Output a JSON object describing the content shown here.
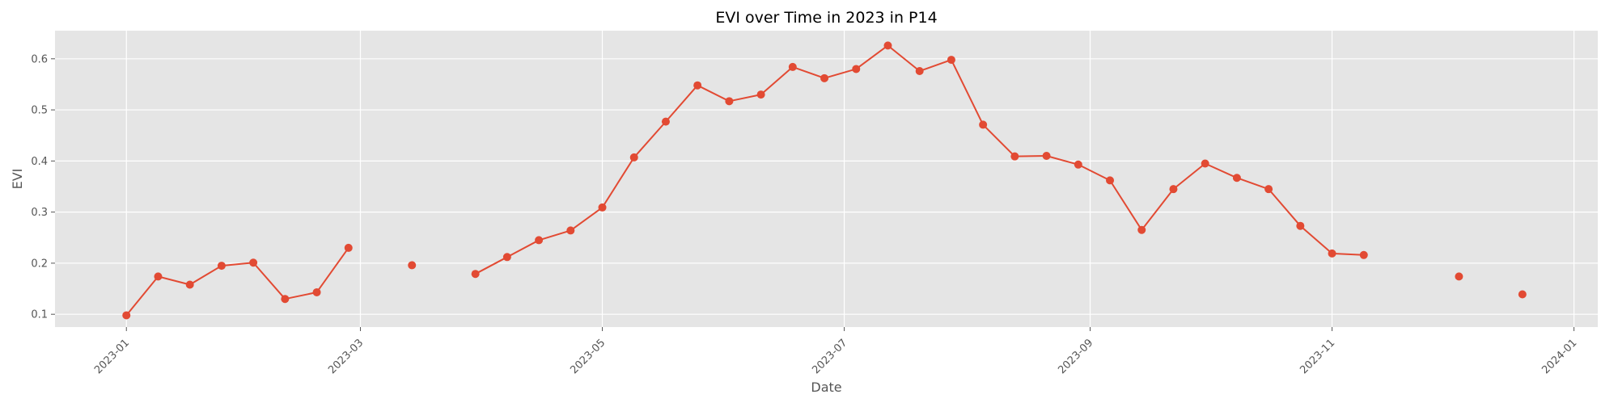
{
  "chart_data": {
    "type": "line",
    "title": "EVI over Time in 2023 in P14",
    "xlabel": "Date",
    "ylabel": "EVI",
    "x_ticks": [
      "2023-01",
      "2023-03",
      "2023-05",
      "2023-07",
      "2023-09",
      "2023-11",
      "2024-01"
    ],
    "y_ticks": [
      "0.1",
      "0.2",
      "0.3",
      "0.4",
      "0.5",
      "0.6"
    ],
    "xlim": [
      "2022-12-14",
      "2024-01-07"
    ],
    "ylim": [
      0.075,
      0.655
    ],
    "grid": true,
    "colors": {
      "series": "#E24A33",
      "plot_bg": "#E5E5E5",
      "grid": "#FFFFFF"
    },
    "series": [
      {
        "points": [
          [
            "2023-01-01",
            0.098
          ],
          [
            "2023-01-09",
            0.174
          ],
          [
            "2023-01-17",
            0.158
          ],
          [
            "2023-01-25",
            0.195
          ],
          [
            "2023-02-02",
            0.201
          ],
          [
            "2023-02-10",
            0.13
          ],
          [
            "2023-02-18",
            0.143
          ],
          [
            "2023-02-26",
            0.23
          ],
          [
            "2023-03-14",
            0.196
          ],
          [
            "2023-03-30",
            0.179
          ],
          [
            "2023-04-07",
            0.212
          ],
          [
            "2023-04-15",
            0.245
          ],
          [
            "2023-04-23",
            0.264
          ],
          [
            "2023-05-01",
            0.309
          ],
          [
            "2023-05-09",
            0.407
          ],
          [
            "2023-05-17",
            0.477
          ],
          [
            "2023-05-25",
            0.548
          ],
          [
            "2023-06-02",
            0.517
          ],
          [
            "2023-06-10",
            0.53
          ],
          [
            "2023-06-18",
            0.584
          ],
          [
            "2023-06-26",
            0.562
          ],
          [
            "2023-07-04",
            0.58
          ],
          [
            "2023-07-12",
            0.626
          ],
          [
            "2023-07-20",
            0.576
          ],
          [
            "2023-07-28",
            0.598
          ],
          [
            "2023-08-05",
            0.471
          ],
          [
            "2023-08-13",
            0.409
          ],
          [
            "2023-08-21",
            0.41
          ],
          [
            "2023-08-29",
            0.393
          ],
          [
            "2023-09-06",
            0.362
          ],
          [
            "2023-09-14",
            0.265
          ],
          [
            "2023-09-22",
            0.345
          ],
          [
            "2023-09-30",
            0.395
          ],
          [
            "2023-10-08",
            0.367
          ],
          [
            "2023-10-16",
            0.345
          ],
          [
            "2023-10-24",
            0.273
          ],
          [
            "2023-11-01",
            0.219
          ],
          [
            "2023-11-09",
            0.216
          ],
          [
            "2023-12-03",
            0.174
          ],
          [
            "2023-12-19",
            0.139
          ]
        ]
      }
    ]
  }
}
